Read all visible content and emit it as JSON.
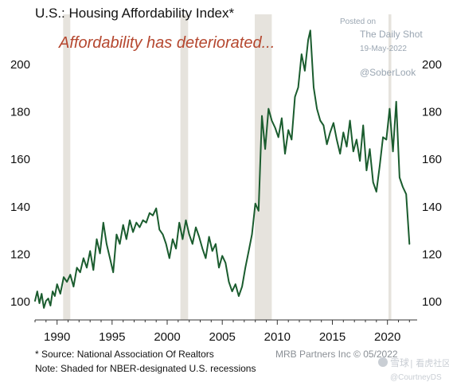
{
  "chart_data": {
    "type": "line",
    "title": "U.S.: Housing Affordability Index*",
    "annotation": "Affordability has deteriorated...",
    "xlabel": "",
    "ylabel": "",
    "xlim": [
      1988,
      2022.7
    ],
    "ylim": [
      95,
      218
    ],
    "x_ticks": [
      1990,
      1995,
      2000,
      2005,
      2010,
      2015,
      2020
    ],
    "y_ticks": [
      100,
      120,
      140,
      160,
      180,
      200
    ],
    "y_axes": "both",
    "grid": false,
    "recessions": [
      [
        1990.55,
        1991.2
      ],
      [
        2001.2,
        2001.9
      ],
      [
        2007.95,
        2009.5
      ],
      [
        2020.1,
        2020.35
      ]
    ],
    "series": [
      {
        "color": "#1a5c2e",
        "x": [
          1988.0,
          1988.2,
          1988.4,
          1988.6,
          1988.8,
          1989.0,
          1989.2,
          1989.4,
          1989.6,
          1989.8,
          1990.0,
          1990.3,
          1990.6,
          1990.9,
          1991.2,
          1991.5,
          1991.8,
          1992.1,
          1992.4,
          1992.7,
          1993.0,
          1993.3,
          1993.6,
          1993.9,
          1994.2,
          1994.5,
          1994.8,
          1995.1,
          1995.4,
          1995.7,
          1996.0,
          1996.3,
          1996.6,
          1996.9,
          1997.2,
          1997.5,
          1997.8,
          1998.1,
          1998.4,
          1998.7,
          1999.0,
          1999.3,
          1999.6,
          1999.9,
          2000.2,
          2000.5,
          2000.8,
          2001.1,
          2001.4,
          2001.7,
          2002.0,
          2002.3,
          2002.6,
          2002.9,
          2003.2,
          2003.5,
          2003.8,
          2004.1,
          2004.4,
          2004.7,
          2005.0,
          2005.3,
          2005.6,
          2005.9,
          2006.2,
          2006.5,
          2006.8,
          2007.1,
          2007.4,
          2007.7,
          2008.0,
          2008.3,
          2008.6,
          2008.9,
          2009.2,
          2009.5,
          2009.8,
          2010.1,
          2010.4,
          2010.7,
          2011.0,
          2011.3,
          2011.6,
          2011.9,
          2012.2,
          2012.5,
          2012.8,
          2013.0,
          2013.3,
          2013.6,
          2013.9,
          2014.2,
          2014.5,
          2014.8,
          2015.1,
          2015.4,
          2015.7,
          2016.0,
          2016.3,
          2016.6,
          2016.9,
          2017.2,
          2017.5,
          2017.8,
          2018.1,
          2018.4,
          2018.7,
          2019.0,
          2019.3,
          2019.6,
          2019.9,
          2020.2,
          2020.5,
          2020.8,
          2021.1,
          2021.4,
          2021.7,
          2022.0
        ],
        "values": [
          100,
          104,
          99,
          103,
          97,
          100,
          101,
          98,
          104,
          102,
          107,
          103,
          110,
          108,
          111,
          106,
          114,
          112,
          118,
          114,
          121,
          113,
          126,
          120,
          133,
          124,
          118,
          112,
          128,
          124,
          132,
          126,
          134,
          129,
          133,
          131,
          134,
          133,
          137,
          136,
          139,
          130,
          128,
          124,
          118,
          126,
          122,
          133,
          126,
          134,
          128,
          124,
          131,
          127,
          122,
          118,
          127,
          121,
          124,
          114,
          119,
          116,
          108,
          104,
          107,
          102,
          106,
          114,
          121,
          128,
          141,
          138,
          178,
          164,
          181,
          176,
          173,
          169,
          177,
          162,
          172,
          168,
          186,
          190,
          204,
          197,
          210,
          214,
          190,
          181,
          176,
          174,
          166,
          171,
          175,
          168,
          162,
          171,
          165,
          176,
          163,
          168,
          159,
          174,
          155,
          164,
          150,
          146,
          157,
          169,
          168,
          181,
          163,
          184,
          152,
          148,
          145,
          124
        ]
      }
    ]
  },
  "watermark": {
    "posted": "Posted on",
    "source": "The Daily Shot",
    "date": "19-May-2022",
    "handle": "@SoberLook"
  },
  "footer": {
    "source_note": "*  Source: National Association Of Realtors",
    "recession_note": "Note: Shaded for NBER-designated U.S. recessions",
    "credit": "MRB Partners Inc © 05/2022",
    "brand": "雪球",
    "community": "| 看虎社区",
    "bottom_handle": "@CourtneyDS"
  },
  "colors": {
    "line": "#1a5c2e",
    "recession_shade": "#e6e3dd",
    "annotation": "#b5472f",
    "watermark": "#9aa6b2",
    "text": "#111111"
  }
}
